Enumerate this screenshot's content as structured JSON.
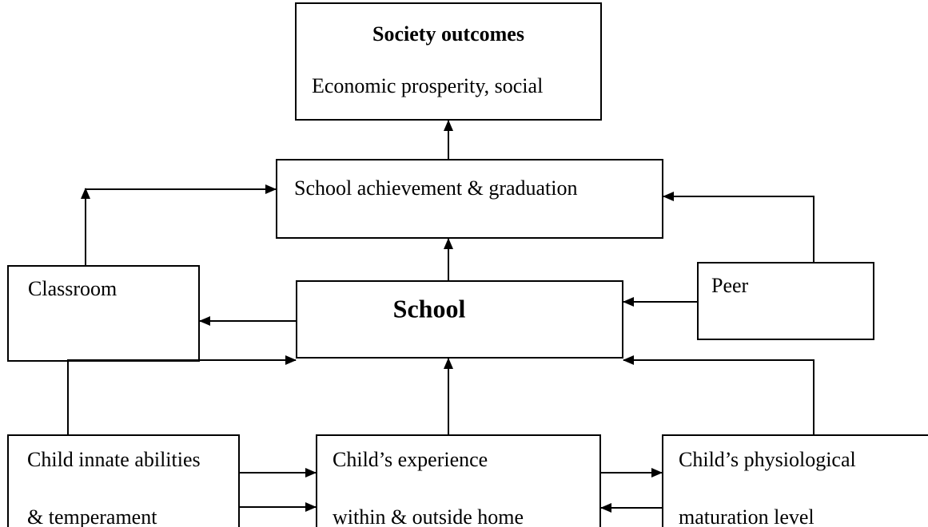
{
  "nodes": [
    {
      "label": "Society outcomes",
      "lines": [
        "Economic prosperity, social"
      ]
    },
    {
      "label": "School achievement & graduation"
    },
    {
      "label": "Classroom"
    },
    {
      "label": "School"
    },
    {
      "label": "Peer"
    },
    {
      "lines": [
        "Child innate abilities",
        "& temperament"
      ]
    },
    {
      "lines": [
        "Child’s experience",
        "within & outside home"
      ]
    },
    {
      "lines": [
        "Child’s physiological",
        "maturation level"
      ]
    }
  ]
}
